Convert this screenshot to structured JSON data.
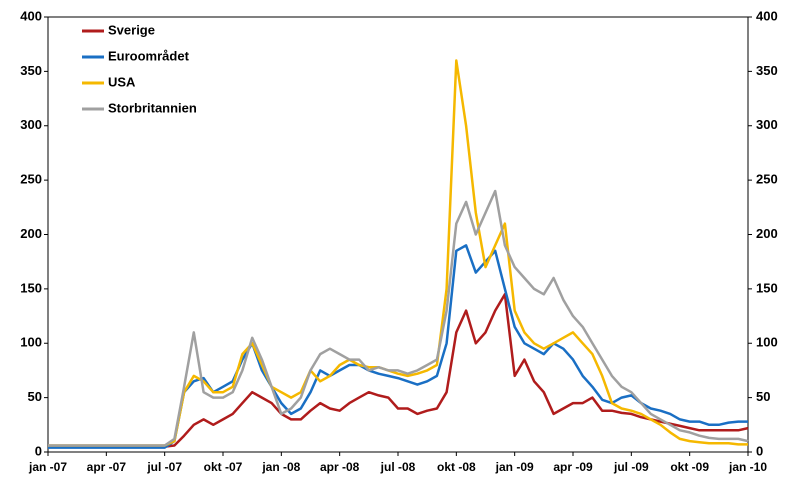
{
  "chart_data": {
    "type": "line",
    "categories": [
      "jan -07",
      null,
      null,
      null,
      null,
      null,
      "apr -07",
      null,
      null,
      null,
      null,
      null,
      "jul -07",
      null,
      null,
      null,
      null,
      null,
      "okt -07",
      null,
      null,
      null,
      null,
      null,
      "jan -08",
      null,
      null,
      null,
      null,
      null,
      "apr -08",
      null,
      null,
      null,
      null,
      null,
      "jul -08",
      null,
      null,
      null,
      null,
      null,
      "okt -08",
      null,
      null,
      null,
      null,
      null,
      "jan -09",
      null,
      null,
      null,
      null,
      null,
      "apr -09",
      null,
      null,
      null,
      null,
      null,
      "jul -09",
      null,
      null,
      null,
      null,
      null,
      "okt -09",
      null,
      null,
      null,
      null,
      null,
      "jan -10"
    ],
    "series": [
      {
        "name": "Sverige",
        "color": "#b01c1c",
        "values": [
          5,
          5,
          5,
          5,
          5,
          5,
          5,
          5,
          5,
          5,
          5,
          5,
          5,
          6,
          15,
          25,
          30,
          25,
          30,
          35,
          45,
          55,
          50,
          45,
          35,
          30,
          30,
          38,
          45,
          40,
          38,
          45,
          50,
          55,
          52,
          50,
          40,
          40,
          35,
          38,
          40,
          55,
          110,
          130,
          100,
          110,
          130,
          145,
          70,
          85,
          65,
          55,
          35,
          40,
          45,
          45,
          50,
          38,
          38,
          36,
          35,
          32,
          30,
          28,
          26,
          24,
          22,
          20,
          20,
          20,
          20,
          20,
          22
        ]
      },
      {
        "name": "Euroområdet",
        "color": "#1a6fc4",
        "values": [
          4,
          4,
          4,
          4,
          4,
          4,
          4,
          4,
          4,
          4,
          4,
          4,
          4,
          10,
          55,
          65,
          68,
          55,
          60,
          65,
          85,
          100,
          75,
          60,
          45,
          35,
          40,
          55,
          75,
          70,
          75,
          80,
          80,
          75,
          72,
          70,
          68,
          65,
          62,
          65,
          70,
          100,
          185,
          190,
          165,
          175,
          185,
          150,
          115,
          100,
          95,
          90,
          100,
          95,
          85,
          70,
          60,
          48,
          45,
          50,
          52,
          45,
          40,
          38,
          35,
          30,
          28,
          28,
          25,
          25,
          27,
          28,
          28
        ]
      },
      {
        "name": "USA",
        "color": "#f5b800",
        "values": [
          6,
          6,
          6,
          6,
          6,
          6,
          6,
          6,
          6,
          6,
          6,
          6,
          6,
          10,
          55,
          70,
          65,
          55,
          55,
          60,
          90,
          100,
          80,
          60,
          55,
          50,
          55,
          75,
          65,
          70,
          80,
          85,
          80,
          78,
          78,
          75,
          72,
          70,
          72,
          75,
          80,
          150,
          360,
          300,
          220,
          170,
          190,
          210,
          130,
          110,
          100,
          95,
          100,
          105,
          110,
          100,
          90,
          70,
          45,
          40,
          38,
          35,
          30,
          25,
          18,
          12,
          10,
          9,
          8,
          8,
          8,
          7,
          7
        ]
      },
      {
        "name": "Storbritannien",
        "color": "#a0a0a0",
        "values": [
          6,
          6,
          6,
          6,
          6,
          6,
          6,
          6,
          6,
          6,
          6,
          6,
          6,
          12,
          60,
          110,
          55,
          50,
          50,
          55,
          75,
          105,
          85,
          60,
          35,
          40,
          50,
          75,
          90,
          95,
          90,
          85,
          85,
          75,
          78,
          75,
          75,
          72,
          75,
          80,
          85,
          130,
          210,
          230,
          200,
          220,
          240,
          190,
          170,
          160,
          150,
          145,
          160,
          140,
          125,
          115,
          100,
          85,
          70,
          60,
          55,
          45,
          35,
          30,
          25,
          20,
          18,
          15,
          13,
          12,
          12,
          12,
          10
        ]
      }
    ],
    "ylim": [
      0,
      400
    ],
    "yticks": [
      0,
      50,
      100,
      150,
      200,
      250,
      300,
      350,
      400
    ],
    "legend": "upper-left"
  }
}
